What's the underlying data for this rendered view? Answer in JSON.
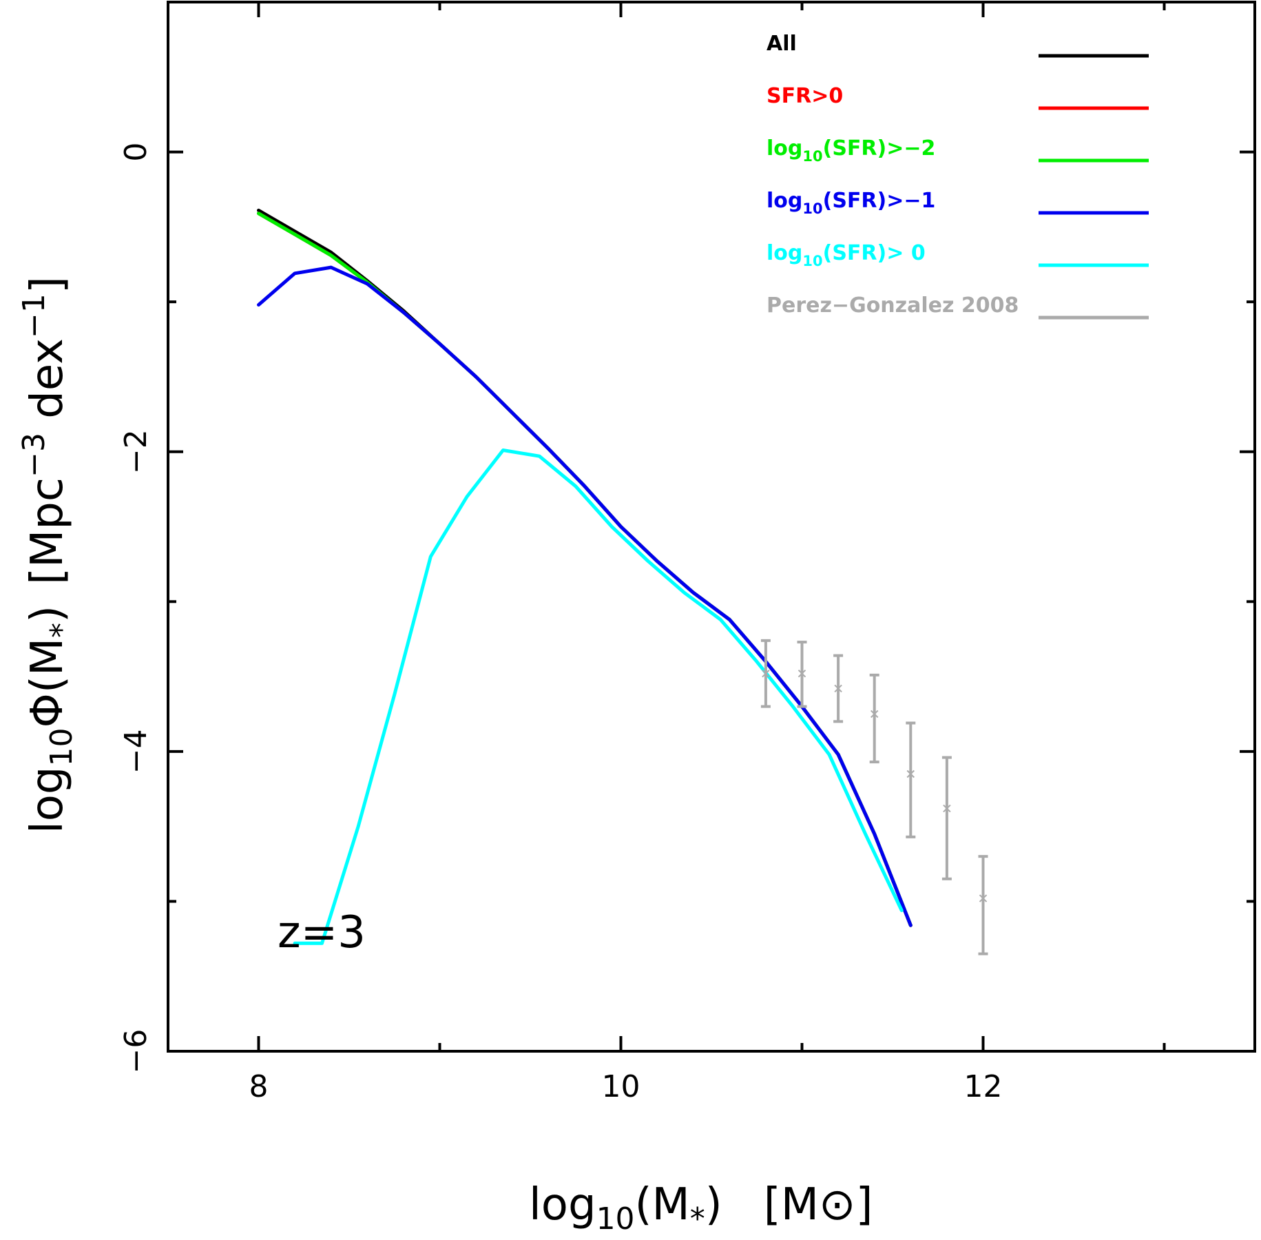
{
  "chart_data": {
    "type": "line",
    "title": "",
    "annotation": "z=3",
    "xlabel": {
      "base": "log",
      "sub": "10",
      "body": "(M",
      "sub2": "*",
      "tail": ")",
      "unit_open": "[M",
      "unit_symbol": "⊙",
      "unit_close": "]"
    },
    "ylabel": {
      "base": "log",
      "sub": "10",
      "body": "Φ(M",
      "sub2": "*",
      "tail": ")",
      "unit_open": "[Mpc",
      "sup1": "−3",
      "mid": " dex",
      "sup2": "−1",
      "unit_close": "]"
    },
    "xlim": [
      7.5,
      13.5
    ],
    "ylim": [
      -6,
      1
    ],
    "xticks_major": [
      8,
      10,
      12
    ],
    "xtick_labels": [
      "8",
      "10",
      "12"
    ],
    "xticks_minor": [
      9,
      11,
      13
    ],
    "yticks_major": [
      0,
      -2,
      -4,
      -6
    ],
    "ytick_labels": [
      "0",
      "−2",
      "−4",
      "−6"
    ],
    "yticks_minor": [
      -1,
      -3,
      -5
    ],
    "legend_position": "top-right",
    "series": [
      {
        "name": "All",
        "color": "#000000",
        "x": [
          8.0,
          8.2,
          8.4,
          8.6,
          8.8,
          9.0,
          9.2,
          9.4,
          9.6,
          9.8,
          10.0,
          10.2,
          10.4,
          10.6,
          10.8,
          11.0,
          11.2,
          11.4,
          11.6
        ],
        "y": [
          -0.39,
          -0.53,
          -0.67,
          -0.86,
          -1.06,
          -1.28,
          -1.5,
          -1.74,
          -1.98,
          -2.23,
          -2.5,
          -2.73,
          -2.94,
          -3.12,
          -3.4,
          -3.7,
          -4.02,
          -4.55,
          -5.16
        ]
      },
      {
        "name": "SFR>0",
        "color": "#ff0000",
        "x": [
          8.0,
          8.2,
          8.4,
          8.6,
          8.8,
          9.0,
          9.2,
          9.4,
          9.6,
          9.8,
          10.0,
          10.2,
          10.4,
          10.6,
          10.8,
          11.0,
          11.2,
          11.4,
          11.6
        ],
        "y": [
          -0.41,
          -0.55,
          -0.69,
          -0.87,
          -1.07,
          -1.28,
          -1.5,
          -1.74,
          -1.98,
          -2.23,
          -2.5,
          -2.73,
          -2.94,
          -3.12,
          -3.4,
          -3.7,
          -4.02,
          -4.55,
          -5.16
        ]
      },
      {
        "name": "log10(SFR)>-2",
        "label_parts": [
          "log",
          "10",
          "(SFR)>−2"
        ],
        "color": "#00ee00",
        "x": [
          8.0,
          8.2,
          8.4,
          8.6,
          8.8,
          9.0,
          9.2,
          9.4,
          9.6,
          9.8,
          10.0,
          10.2,
          10.4,
          10.6,
          10.8,
          11.0,
          11.2,
          11.4,
          11.6
        ],
        "y": [
          -0.41,
          -0.55,
          -0.69,
          -0.87,
          -1.07,
          -1.28,
          -1.5,
          -1.74,
          -1.98,
          -2.23,
          -2.5,
          -2.73,
          -2.94,
          -3.12,
          -3.4,
          -3.7,
          -4.02,
          -4.55,
          -5.16
        ]
      },
      {
        "name": "log10(SFR)>-1",
        "label_parts": [
          "log",
          "10",
          "(SFR)>−1"
        ],
        "color": "#0000ee",
        "x": [
          8.0,
          8.2,
          8.4,
          8.6,
          8.8,
          9.0,
          9.2,
          9.4,
          9.6,
          9.8,
          10.0,
          10.2,
          10.4,
          10.6,
          10.8,
          11.0,
          11.2,
          11.4,
          11.6
        ],
        "y": [
          -1.02,
          -0.81,
          -0.77,
          -0.88,
          -1.07,
          -1.28,
          -1.5,
          -1.74,
          -1.98,
          -2.23,
          -2.5,
          -2.73,
          -2.94,
          -3.12,
          -3.4,
          -3.7,
          -4.02,
          -4.55,
          -5.16
        ]
      },
      {
        "name": "log10(SFR)> 0",
        "label_parts": [
          "log",
          "10",
          "(SFR)> 0"
        ],
        "color": "#00ffff",
        "x": [
          8.2,
          8.35,
          8.55,
          8.75,
          8.95,
          9.15,
          9.35,
          9.55,
          9.75,
          9.95,
          10.15,
          10.35,
          10.55,
          10.75,
          10.95,
          11.15,
          11.35,
          11.55
        ],
        "y": [
          -5.28,
          -5.28,
          -4.5,
          -3.62,
          -2.7,
          -2.3,
          -1.99,
          -2.03,
          -2.23,
          -2.5,
          -2.73,
          -2.94,
          -3.12,
          -3.4,
          -3.7,
          -4.02,
          -4.55,
          -5.06
        ]
      }
    ],
    "reference": {
      "name": "Perez−Gonzalez 2008",
      "color": "#aaaaaa",
      "points": [
        {
          "x": 10.8,
          "y": -3.48,
          "ylo": -3.7,
          "yhi": -3.26
        },
        {
          "x": 11.0,
          "y": -3.48,
          "ylo": -3.7,
          "yhi": -3.27
        },
        {
          "x": 11.2,
          "y": -3.58,
          "ylo": -3.8,
          "yhi": -3.36
        },
        {
          "x": 11.4,
          "y": -3.75,
          "ylo": -4.07,
          "yhi": -3.49
        },
        {
          "x": 11.6,
          "y": -4.15,
          "ylo": -4.57,
          "yhi": -3.81
        },
        {
          "x": 11.8,
          "y": -4.38,
          "ylo": -4.85,
          "yhi": -4.04
        },
        {
          "x": 12.0,
          "y": -4.98,
          "ylo": -5.35,
          "yhi": -4.7
        }
      ]
    }
  }
}
